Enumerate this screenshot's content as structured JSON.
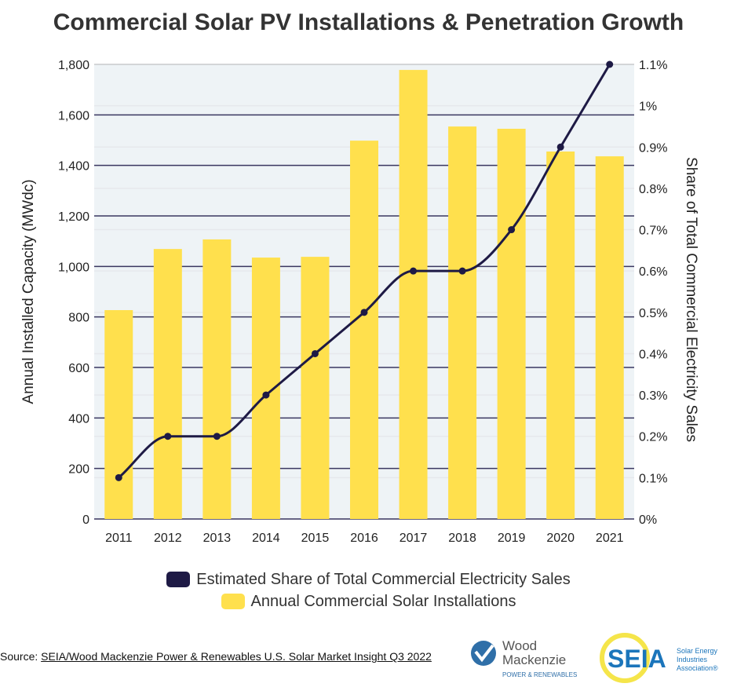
{
  "chart_data": {
    "type": "bar+line",
    "title": "Commercial Solar PV Installations & Penetration Growth",
    "categories": [
      "2011",
      "2012",
      "2013",
      "2014",
      "2015",
      "2016",
      "2017",
      "2018",
      "2019",
      "2020",
      "2021"
    ],
    "series": [
      {
        "name": "Annual Commercial Solar Installations",
        "type": "bar",
        "axis": "left",
        "color": "#FFE04D",
        "values": [
          827,
          1069,
          1107,
          1035,
          1038,
          1498,
          1778,
          1554,
          1545,
          1455,
          1436
        ]
      },
      {
        "name": "Estimated Share of Total Commercial Electricity Sales",
        "type": "line",
        "axis": "right",
        "color": "#1E1A45",
        "values": [
          0.1,
          0.2,
          0.2,
          0.3,
          0.4,
          0.5,
          0.6,
          0.6,
          0.7,
          0.9,
          1.1
        ]
      }
    ],
    "ylabel": "Annual Installed Capacity (MWdc)",
    "ylim": [
      0,
      1800
    ],
    "yticks": [
      "0",
      "200",
      "400",
      "600",
      "800",
      "1,000",
      "1,200",
      "1,400",
      "1,600",
      "1,800"
    ],
    "y2label": "Share of Total Commercial Electricity Sales",
    "y2lim": [
      0,
      1.1
    ],
    "y2ticks": [
      "0%",
      "0.1%",
      "0.2%",
      "0.3%",
      "0.4%",
      "0.5%",
      "0.6%",
      "0.7%",
      "0.8%",
      "0.9%",
      "1%",
      "1.1%"
    ],
    "grid": true,
    "legend_position": "bottom",
    "plot_bg": "#EEF3F6"
  },
  "source": {
    "prefix": "Source: ",
    "link": "SEIA/Wood Mackenzie Power & Renewables U.S. Solar Market Insight Q3 2022"
  },
  "logos": {
    "woodmac": [
      "Wood",
      "Mackenzie",
      "POWER & RENEWABLES"
    ],
    "seia": [
      "SEIA",
      "Solar Energy",
      "Industries",
      "Association®"
    ]
  }
}
